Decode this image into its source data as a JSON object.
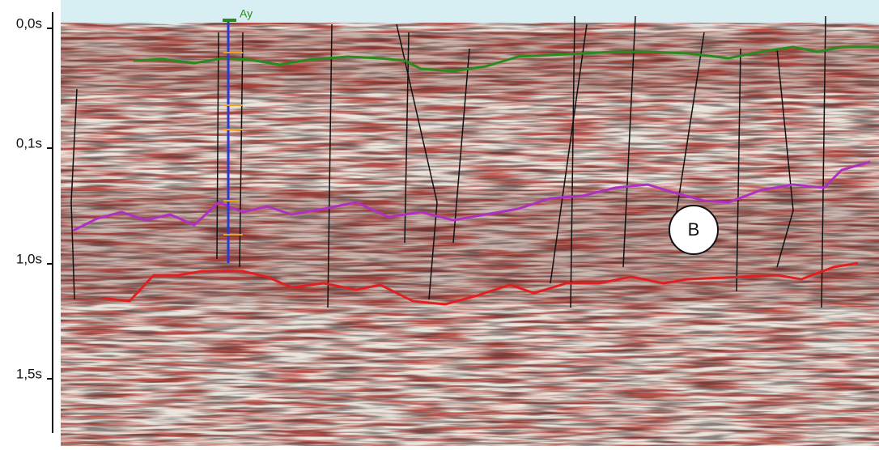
{
  "axis": {
    "ticks": [
      "0,0s",
      "0,1s",
      "1,0s",
      "1,5s"
    ]
  },
  "annotations": {
    "well_label": "Ay",
    "zone_label": "B"
  }
}
